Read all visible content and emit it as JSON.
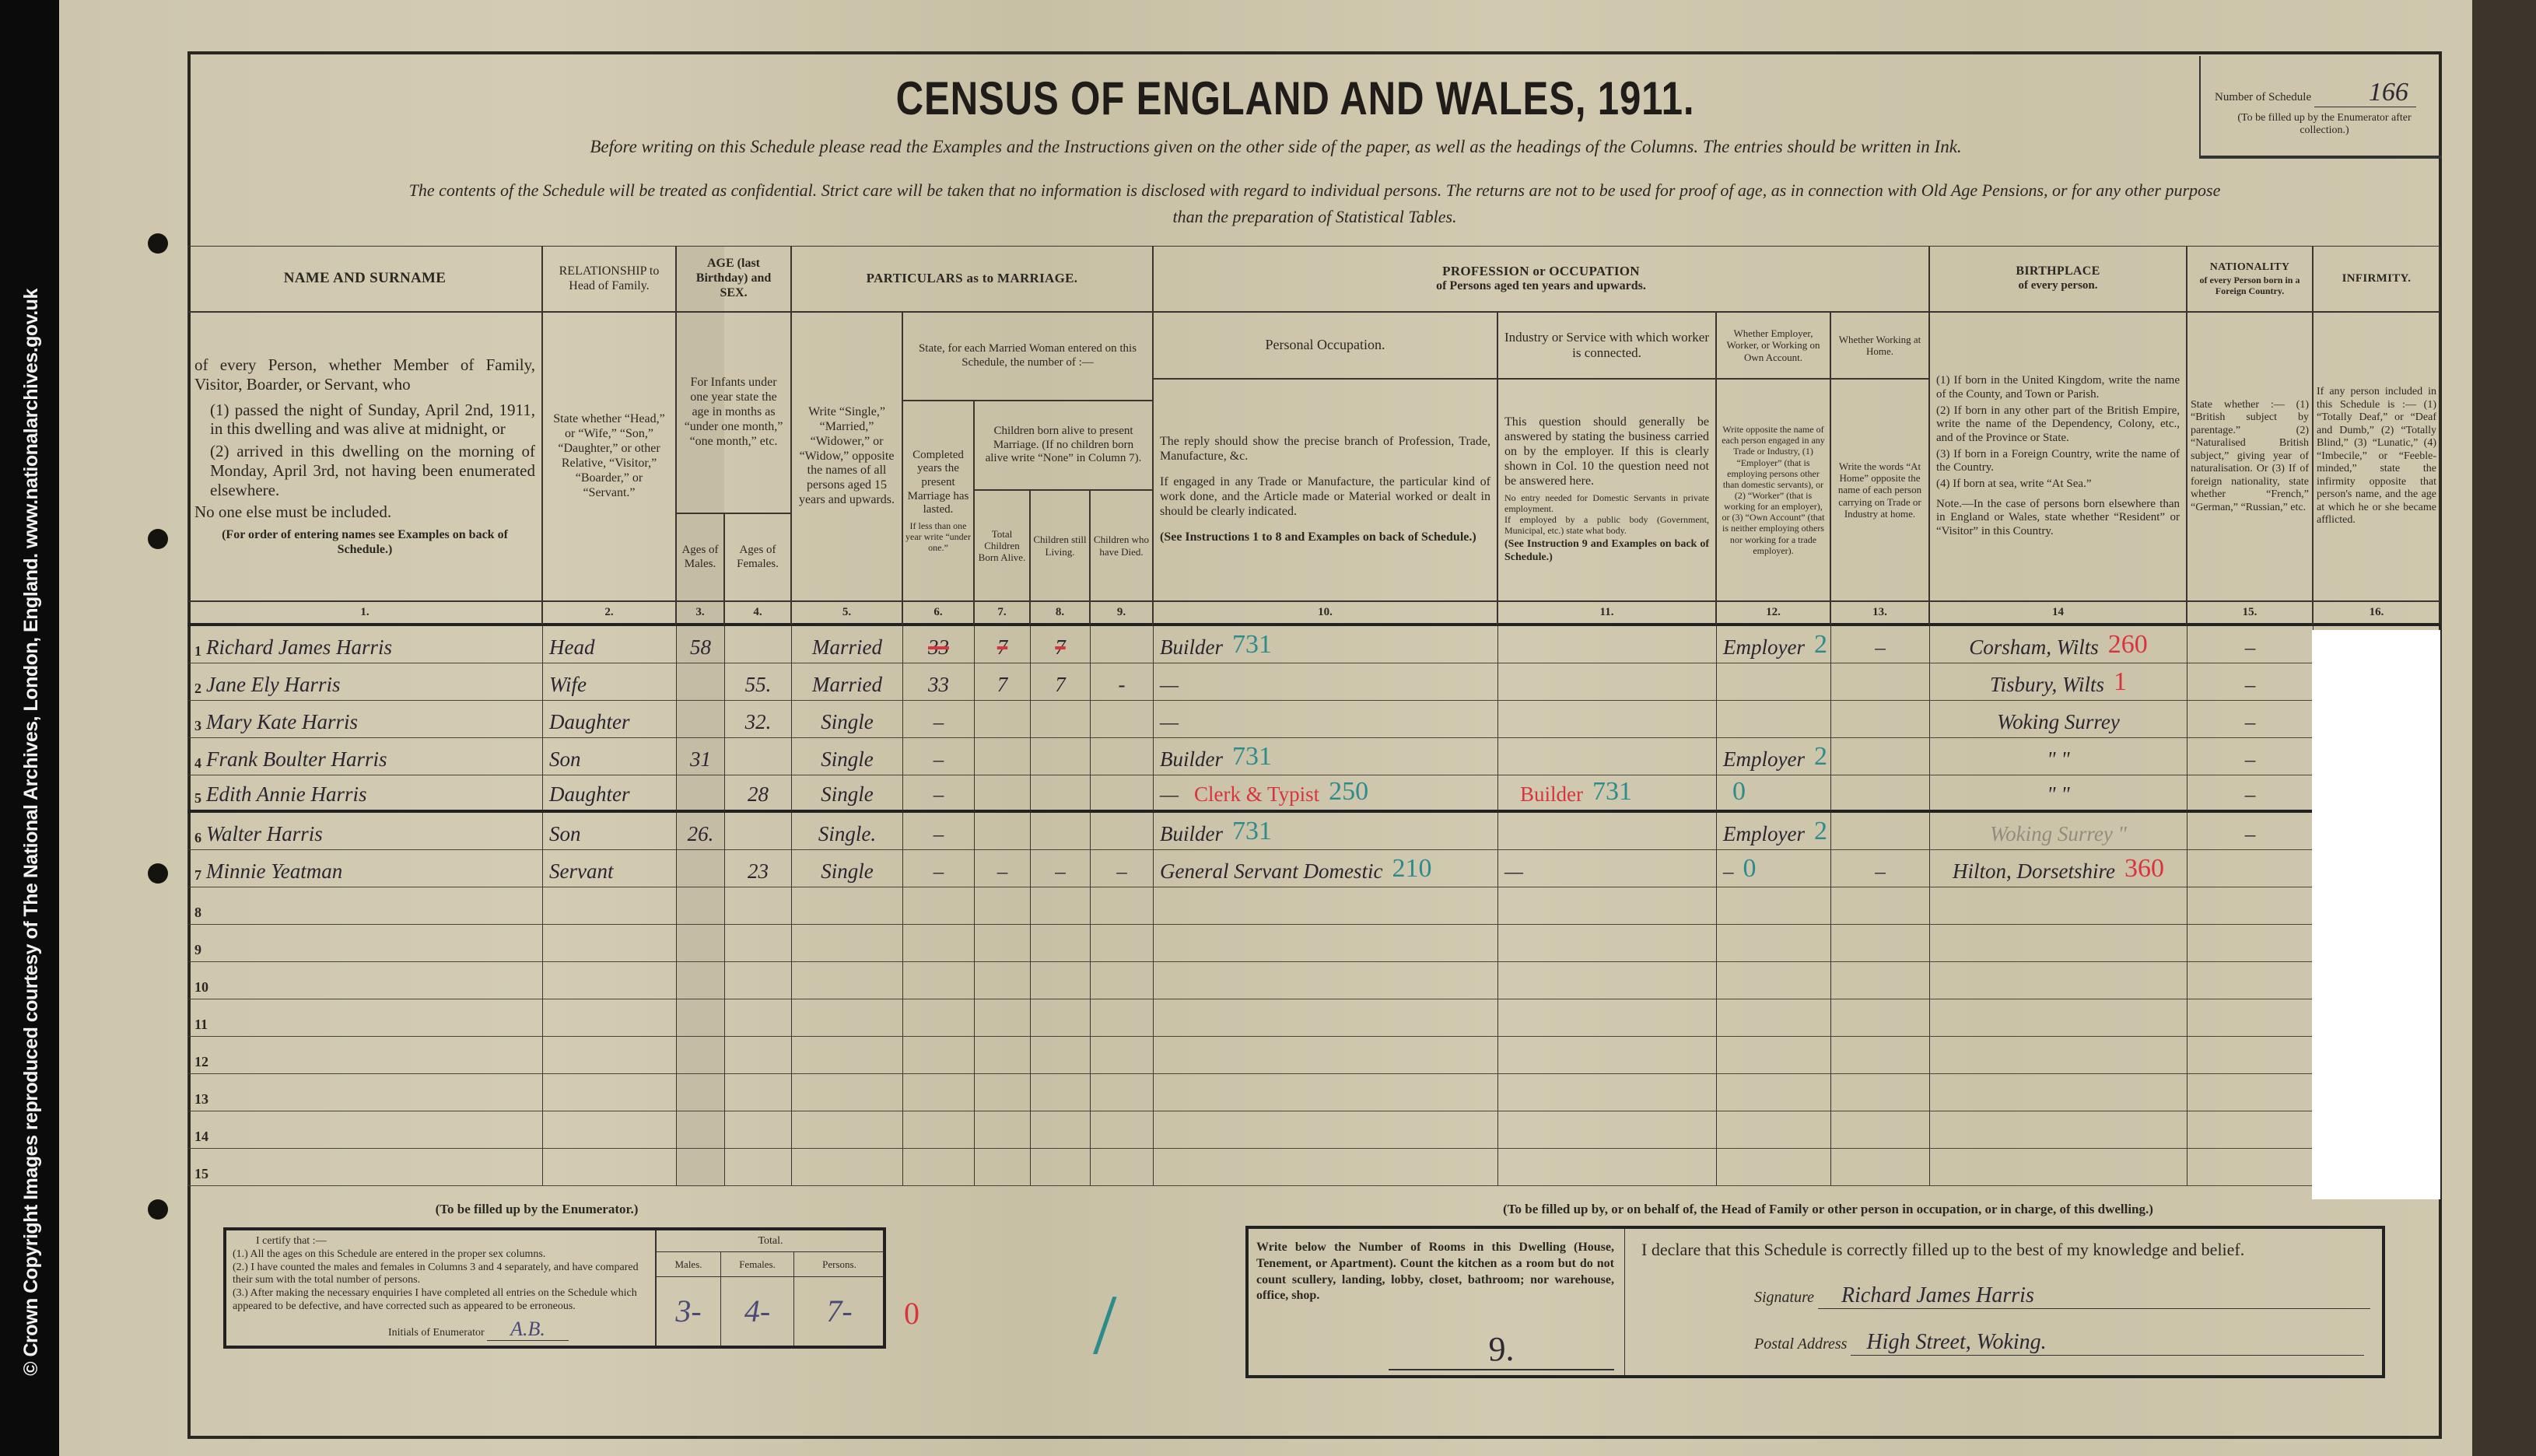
{
  "colors": {
    "ink": "#2a2530",
    "red_annotation": "#d8343f",
    "teal_annotation": "#2c8c8c",
    "paper": "#cfc8ae"
  },
  "credit": "© Crown Copyright Images reproduced courtesy of The National Archives, London, England. www.nationalarchives.gov.uk",
  "title": "CENSUS OF ENGLAND AND WALES, 1911.",
  "instructions": "Before writing on this Schedule please read the Examples and the Instructions given on the other side of the paper, as well as the headings of the Columns. The entries should be written in Ink.",
  "confidential_1": "The contents of the Schedule will be treated as confidential. Strict care will be taken that no information is disclosed with regard to individual persons. The returns are not to be used for proof of age, as in connection with Old Age Pensions, or for any other purpose",
  "confidential_2": "than the preparation of Statistical Tables.",
  "schedule": {
    "label": "Number of Schedule",
    "value": "166",
    "note": "(To be filled up by the Enumerator after collection.)"
  },
  "headers": {
    "c1_title": "NAME AND SURNAME",
    "c1_desc_a": "of every Person, whether Member of Family, Visitor, Boarder, or Servant, who",
    "c1_desc_b": "(1) passed the night of Sunday, April 2nd, 1911, in this dwelling and was alive at midnight, or",
    "c1_desc_c": "(2) arrived in this dwelling on the morning of Monday, April 3rd, not having been enumerated elsewhere.",
    "c1_desc_d": "No one else must be included.",
    "c1_desc_e": "(For order of entering names see Examples on back of Schedule.)",
    "c2_title": "RELATIONSHIP to Head of Family.",
    "c2_desc": "State whether “Head,” or “Wife,” “Son,” “Daughter,” or other Relative, “Visitor,” “Boarder,” or “Servant.”",
    "c34_title": "AGE (last Birthday) and SEX.",
    "c34_desc": "For Infants under one year state the age in months as “under one month,” “one month,” etc.",
    "c3_title": "Ages of Males.",
    "c4_title": "Ages of Females.",
    "c59_title": "PARTICULARS as to MARRIAGE.",
    "c5_desc": "Write “Single,” “Married,” “Widower,” or “Widow,” opposite the names of all persons aged 15 years and upwards.",
    "c69_desc": "State, for each Married Woman entered on this Schedule, the number of :—",
    "c6_desc": "Completed years the present Marriage has lasted.",
    "c6_note": "If less than one year write “under one.”",
    "c79_desc": "Children born alive to present Marriage. (If no children born alive write “None” in Column 7).",
    "c7_title": "Total Children Born Alive.",
    "c8_title": "Children still Living.",
    "c9_title": "Children who have Died.",
    "c1013_title": "PROFESSION or OCCUPATION",
    "c1013_sub": "of Persons aged ten years and upwards.",
    "c10_title": "Personal Occupation.",
    "c10_desc_a": "The reply should show the precise branch of Profession, Trade, Manufacture, &c.",
    "c10_desc_b": "If engaged in any Trade or Manufacture, the particular kind of work done, and the Article made or Material worked or dealt in should be clearly indicated.",
    "c10_desc_c": "(See Instructions 1 to 8 and Examples on back of Schedule.)",
    "c11_title": "Industry or Service with which worker is connected.",
    "c11_desc_a": "This question should generally be answered by stating the business carried on by the employer. If this is clearly shown in Col. 10 the question need not be answered here.",
    "c11_desc_b": "No entry needed for Domestic Servants in private employment.",
    "c11_desc_c": "If employed by a public body (Government, Municipal, etc.) state what body.",
    "c11_desc_d": "(See Instruction 9 and Examples on back of Schedule.)",
    "c12_title": "Whether Employer, Worker, or Working on Own Account.",
    "c12_desc": "Write opposite the name of each person engaged in any Trade or Industry, (1) “Employer” (that is employing persons other than domestic servants), or (2) “Worker” (that is working for an employer), or (3) “Own Account” (that is neither employing others nor working for a trade employer).",
    "c13_title": "Whether Working at Home.",
    "c13_desc": "Write the words “At Home” opposite the name of each person carrying on Trade or Industry at home.",
    "c14_title": "BIRTHPLACE",
    "c14_sub": "of every person.",
    "c14_desc_a": "(1) If born in the United Kingdom, write the name of the County, and Town or Parish.",
    "c14_desc_b": "(2) If born in any other part of the British Empire, write the name of the Dependency, Colony, etc., and of the Province or State.",
    "c14_desc_c": "(3) If born in a Foreign Country, write the name of the Country.",
    "c14_desc_d": "(4) If born at sea, write “At Sea.”",
    "c14_note": "Note.—In the case of persons born elsewhere than in England or Wales, state whether “Resident” or “Visitor” in this Country.",
    "c15_title": "NATIONALITY",
    "c15_sub": "of every Person born in a Foreign Country.",
    "c15_desc": "State whether :— (1) “British subject by parentage.” (2) “Naturalised British subject,” giving year of naturalisation. Or (3) If of foreign nationality, state whether “French,” “German,” “Russian,” etc.",
    "c16_title": "INFIRMITY.",
    "c16_desc": "If any person included in this Schedule is :— (1) “Totally Deaf,” or “Deaf and Dumb,” (2) “Totally Blind,” (3) “Lunatic,” (4) “Imbecile,” or “Feeble-minded,” state the infirmity opposite that person's name, and the age at which he or she became afflicted.",
    "col_numbers": [
      "1.",
      "2.",
      "3.",
      "4.",
      "5.",
      "6.",
      "7.",
      "8.",
      "9.",
      "10.",
      "11.",
      "12.",
      "13.",
      "14",
      "15.",
      "16."
    ]
  },
  "rows": [
    {
      "no": "1",
      "name": "Richard James Harris",
      "relationship": "Head",
      "age_male": "58",
      "age_female": "",
      "marriage": "Married",
      "years_married": "33",
      "children_born": "7",
      "children_living": "7",
      "children_died": "",
      "struck_out": true,
      "occupation": "Builder",
      "occupation_code": "731",
      "industry": "",
      "industry_note": "",
      "industry_code": "",
      "employment": "Employer",
      "employment_code": "2",
      "at_home": "–",
      "birthplace": "Corsham, Wilts",
      "birthplace_code": "260",
      "nationality": "–"
    },
    {
      "no": "2",
      "name": "Jane Ely Harris",
      "relationship": "Wife",
      "age_male": "",
      "age_female": "55.",
      "marriage": "Married",
      "years_married": "33",
      "children_born": "7",
      "children_living": "7",
      "children_died": "-",
      "occupation": "—",
      "occupation_code": "",
      "industry": "",
      "industry_note": "",
      "industry_code": "",
      "employment": "",
      "employment_code": "",
      "at_home": "",
      "birthplace": "Tisbury, Wilts",
      "birthplace_code": "1",
      "nationality": "–"
    },
    {
      "no": "3",
      "name": "Mary Kate Harris",
      "relationship": "Daughter",
      "age_male": "",
      "age_female": "32.",
      "marriage": "Single",
      "years_married": "–",
      "children_born": "",
      "children_living": "",
      "children_died": "",
      "occupation": "—",
      "occupation_code": "",
      "industry": "",
      "industry_note": "",
      "industry_code": "",
      "employment": "",
      "employment_code": "",
      "at_home": "",
      "birthplace": "Woking Surrey",
      "birthplace_code": "",
      "nationality": "–"
    },
    {
      "no": "4",
      "name": "Frank Boulter Harris",
      "relationship": "Son",
      "age_male": "31",
      "age_female": "",
      "marriage": "Single",
      "years_married": "–",
      "children_born": "",
      "children_living": "",
      "children_died": "",
      "occupation": "Builder",
      "occupation_code": "731",
      "industry": "",
      "industry_note": "",
      "industry_code": "",
      "employment": "Employer",
      "employment_code": "2",
      "at_home": "",
      "birthplace": "\"      \"",
      "birthplace_code": "",
      "nationality": "–"
    },
    {
      "no": "5",
      "name": "Edith Annie Harris",
      "relationship": "Daughter",
      "age_male": "",
      "age_female": "28",
      "marriage": "Single",
      "years_married": "–",
      "children_born": "",
      "children_living": "",
      "children_died": "",
      "occupation": "—",
      "occupation_note": "Clerk & Typist",
      "occupation_code": "250",
      "industry": "",
      "industry_note": "Builder",
      "industry_code": "731",
      "employment": "",
      "employment_code": "0",
      "at_home": "",
      "birthplace": "\"      \"",
      "birthplace_code": "",
      "nationality": "–"
    },
    {
      "no": "6",
      "name": "Walter Harris",
      "relationship": "Son",
      "age_male": "26.",
      "age_female": "",
      "marriage": "Single.",
      "years_married": "–",
      "children_born": "",
      "children_living": "",
      "children_died": "",
      "occupation": "Builder",
      "occupation_code": "731",
      "industry": "",
      "industry_note": "",
      "industry_code": "",
      "employment": "Employer",
      "employment_code": "2",
      "at_home": "",
      "birthplace": "Woking Surrey \"",
      "birthplace_code": "",
      "nationality": "–"
    },
    {
      "no": "7",
      "name": "Minnie Yeatman",
      "relationship": "Servant",
      "age_male": "",
      "age_female": "23",
      "marriage": "Single",
      "years_married": "–",
      "children_born": "–",
      "children_living": "–",
      "children_died": "–",
      "occupation": "General Servant Domestic",
      "occupation_code": "210",
      "industry": "—",
      "industry_note": "",
      "industry_code": "",
      "employment": "–",
      "employment_code": "0",
      "at_home": "–",
      "birthplace": "Hilton, Dorsetshire",
      "birthplace_code": "360",
      "nationality": ""
    },
    {
      "no": "8"
    },
    {
      "no": "9"
    },
    {
      "no": "10"
    },
    {
      "no": "11"
    },
    {
      "no": "12"
    },
    {
      "no": "13"
    },
    {
      "no": "14"
    },
    {
      "no": "15"
    }
  ],
  "enumerator": {
    "heading": "(To be filled up by the Enumerator.)",
    "certify": "I certify that :—",
    "item1": "(1.) All the ages on this Schedule are entered in the proper sex columns.",
    "item2": "(2.) I have counted the males and females in Columns 3 and 4 separately, and have compared their sum with the total number of persons.",
    "item3": "(3.) After making the necessary enquiries I have completed all entries on the Schedule which appeared to be defective, and have corrected such as appeared to be erroneous.",
    "initials_label": "Initials of Enumerator",
    "initials": "A.B.",
    "total_label": "Total.",
    "males_label": "Males.",
    "females_label": "Females.",
    "persons_label": "Persons.",
    "males": "3-",
    "females": "4-",
    "persons": "7-",
    "red_mark": "0",
    "teal_mark": "/"
  },
  "head_section": {
    "heading": "(To be filled up by, or on behalf of, the Head of Family or other person in occupation, or in charge, of this dwelling.)",
    "rooms_instruction": "Write below the Number of Rooms in this Dwelling (House, Tenement, or Apartment). Count the kitchen as a room but do not count scullery, landing, lobby, closet, bathroom; nor warehouse, office, shop.",
    "rooms": "9.",
    "declaration": "I declare that this Schedule is correctly filled up to the best of my knowledge and belief.",
    "signature_label": "Signature",
    "signature": "Richard James Harris",
    "address_label": "Postal Address",
    "address": "High Street, Woking."
  }
}
